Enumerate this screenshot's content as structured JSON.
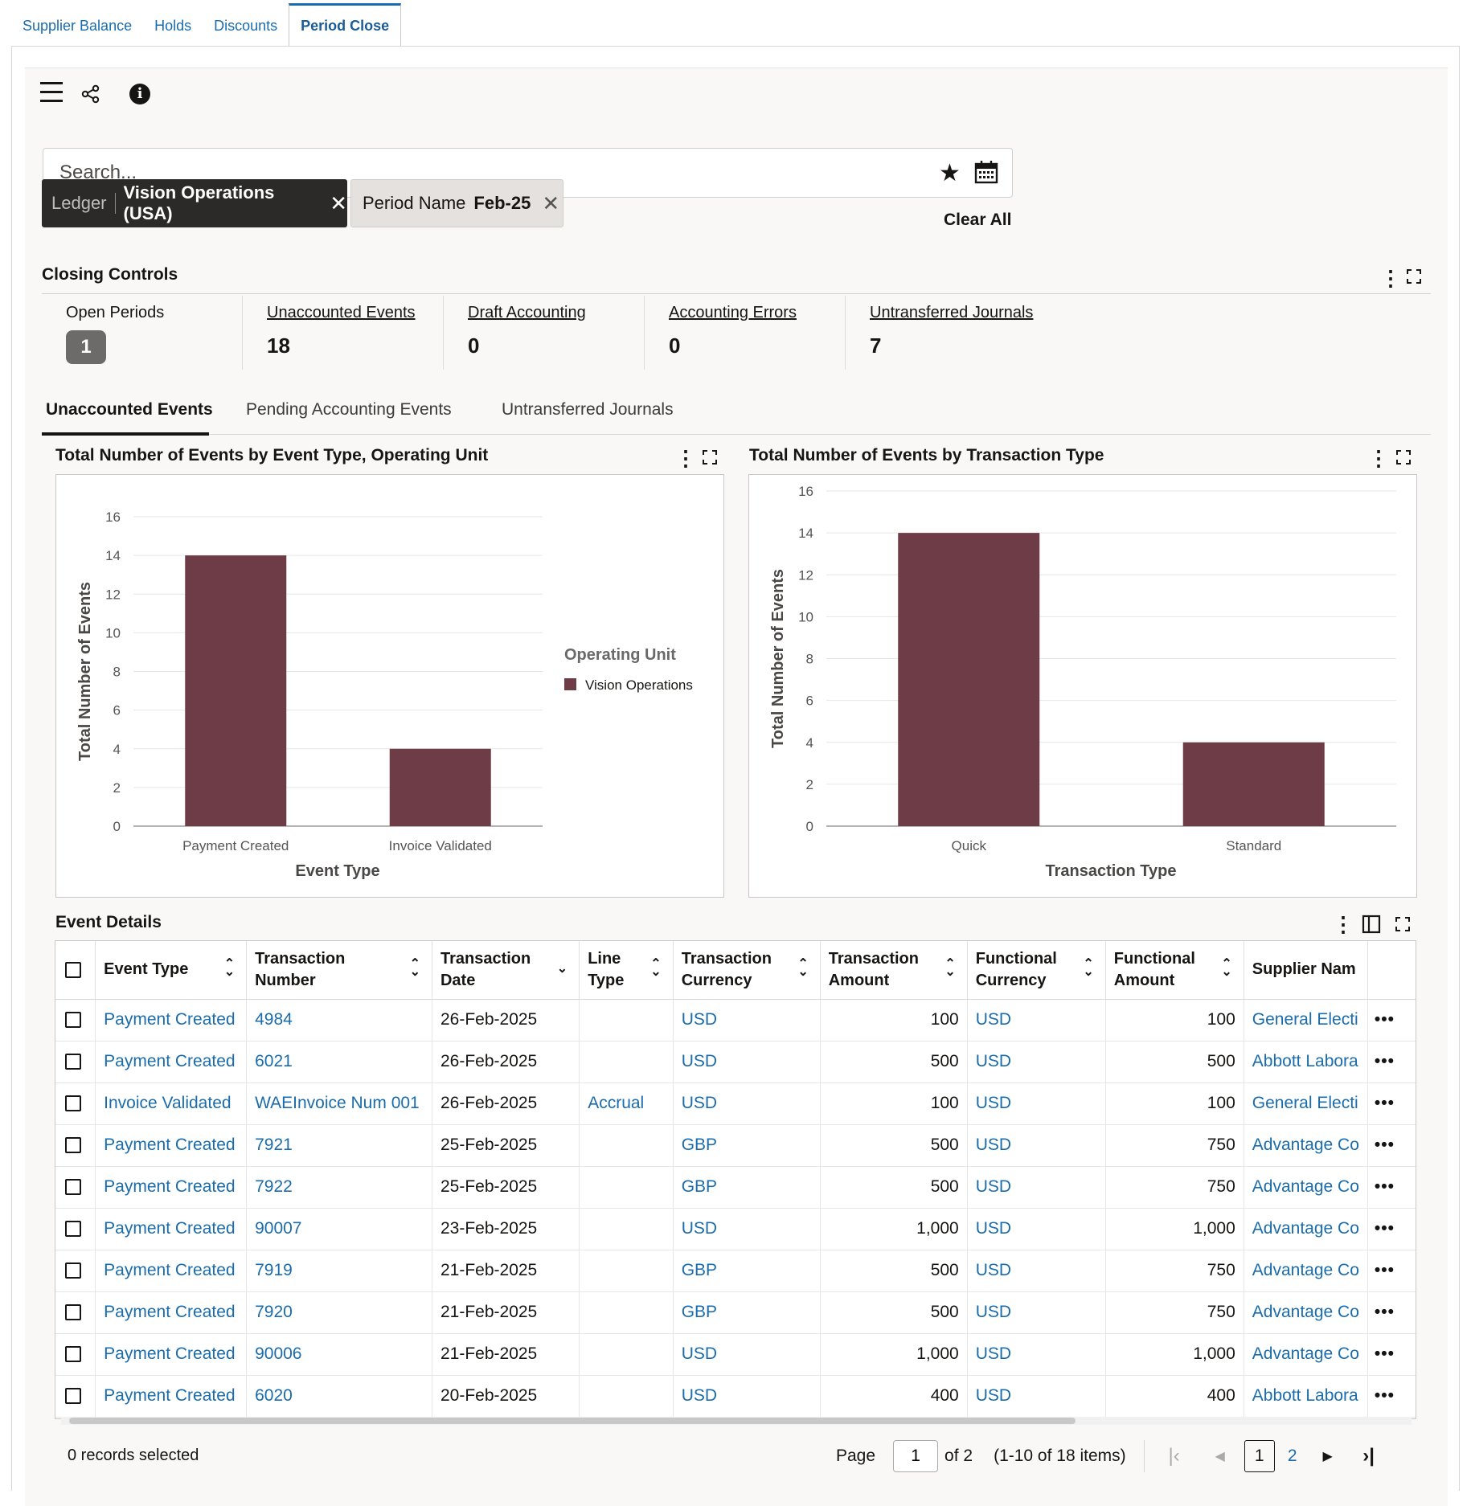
{
  "tabs": [
    "Supplier Balance",
    "Holds",
    "Discounts",
    "Period Close"
  ],
  "search": {
    "placeholder": "Search...",
    "value": ""
  },
  "filters": {
    "ledger": {
      "label": "Ledger",
      "value": "Vision Operations (USA)"
    },
    "period": {
      "label": "Period Name",
      "value": "Feb-25"
    },
    "clear_all": "Clear All"
  },
  "closing_controls": {
    "title": "Closing Controls",
    "open_periods": {
      "label": "Open Periods",
      "value": "1"
    },
    "unaccounted": {
      "label": "Unaccounted Events",
      "value": "18"
    },
    "draft": {
      "label": "Draft Accounting",
      "value": "0"
    },
    "errors": {
      "label": "Accounting Errors",
      "value": "0"
    },
    "untransferred": {
      "label": "Untransferred Journals",
      "value": "7"
    }
  },
  "subtabs": [
    "Unaccounted Events",
    "Pending Accounting Events",
    "Untransferred Journals"
  ],
  "chart_data": [
    {
      "type": "bar",
      "title": "Total Number of Events by Event Type, Operating Unit",
      "xlabel": "Event Type",
      "ylabel": "Total Number of Events",
      "categories": [
        "Payment Created",
        "Invoice Validated"
      ],
      "series": [
        {
          "name": "Vision Operations",
          "values": [
            14,
            4
          ]
        }
      ],
      "legend_title": "Operating Unit",
      "legend_position": "right",
      "ylim": [
        0,
        16
      ],
      "yticks": [
        0,
        2,
        4,
        6,
        8,
        10,
        12,
        14,
        16
      ],
      "color": "#6e3c47",
      "grid": true
    },
    {
      "type": "bar",
      "title": "Total Number of Events by Transaction Type",
      "xlabel": "Transaction Type",
      "ylabel": "Total Number of Events",
      "categories": [
        "Quick",
        "Standard"
      ],
      "values": [
        14,
        4
      ],
      "ylim": [
        0,
        16
      ],
      "yticks": [
        0,
        2,
        4,
        6,
        8,
        10,
        12,
        14,
        16
      ],
      "color": "#6e3c47",
      "grid": true
    }
  ],
  "event_details": {
    "title": "Event Details",
    "headers": [
      "Event Type",
      "Transaction Number",
      "Transaction Date",
      "Line Type",
      "Transaction Currency",
      "Transaction Amount",
      "Functional Currency",
      "Functional Amount",
      "Supplier Nam"
    ],
    "rows": [
      [
        "Payment Created",
        "4984",
        "26-Feb-2025",
        "",
        "USD",
        "100",
        "USD",
        "100",
        "General Electi"
      ],
      [
        "Payment Created",
        "6021",
        "26-Feb-2025",
        "",
        "USD",
        "500",
        "USD",
        "500",
        "Abbott Labora"
      ],
      [
        "Invoice Validated",
        "WAEInvoice Num 001",
        "26-Feb-2025",
        "Accrual",
        "USD",
        "100",
        "USD",
        "100",
        "General Electi"
      ],
      [
        "Payment Created",
        "7921",
        "25-Feb-2025",
        "",
        "GBP",
        "500",
        "USD",
        "750",
        "Advantage Co"
      ],
      [
        "Payment Created",
        "7922",
        "25-Feb-2025",
        "",
        "GBP",
        "500",
        "USD",
        "750",
        "Advantage Co"
      ],
      [
        "Payment Created",
        "90007",
        "23-Feb-2025",
        "",
        "USD",
        "1,000",
        "USD",
        "1,000",
        "Advantage Co"
      ],
      [
        "Payment Created",
        "7919",
        "21-Feb-2025",
        "",
        "GBP",
        "500",
        "USD",
        "750",
        "Advantage Co"
      ],
      [
        "Payment Created",
        "7920",
        "21-Feb-2025",
        "",
        "GBP",
        "500",
        "USD",
        "750",
        "Advantage Co"
      ],
      [
        "Payment Created",
        "90006",
        "21-Feb-2025",
        "",
        "USD",
        "1,000",
        "USD",
        "1,000",
        "Advantage Co"
      ],
      [
        "Payment Created",
        "6020",
        "20-Feb-2025",
        "",
        "USD",
        "400",
        "USD",
        "400",
        "Abbott Labora"
      ]
    ]
  },
  "footer": {
    "records_selected": "0 records selected",
    "page_label": "Page",
    "page_value": "1",
    "of_label": "of 2",
    "items_label": "(1-10 of 18 items)",
    "pages": [
      "1",
      "2"
    ]
  }
}
